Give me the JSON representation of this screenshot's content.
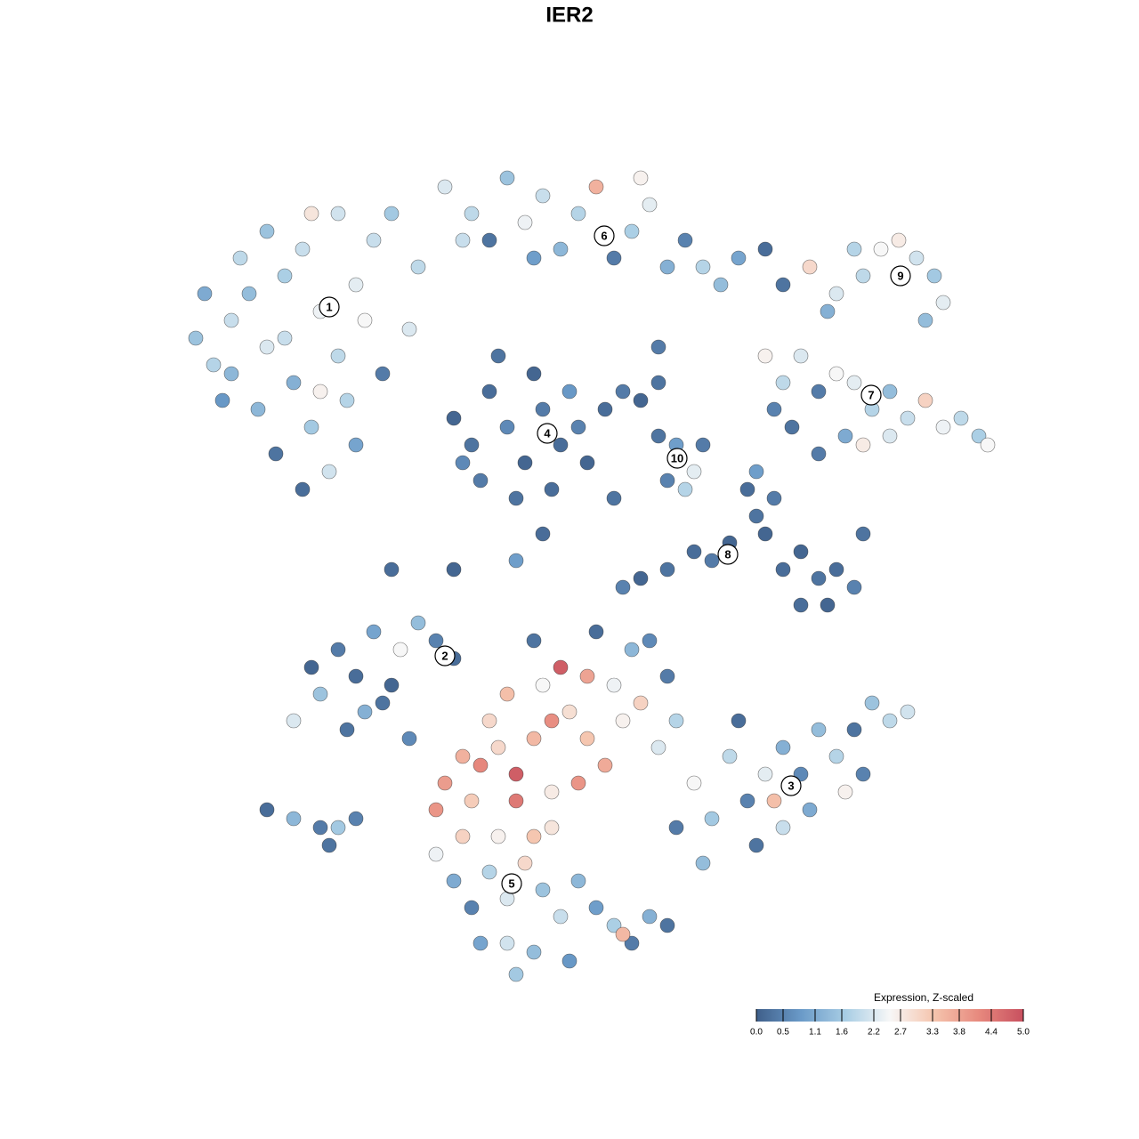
{
  "chart_data": {
    "type": "scatter",
    "title": "IER2",
    "xlim": [
      0,
      128
    ],
    "ylim": [
      0,
      128
    ],
    "x": [
      22,
      24,
      26,
      28,
      30,
      32,
      34,
      36,
      38,
      40,
      42,
      44,
      33,
      35,
      31,
      34,
      37,
      40,
      29,
      36,
      39,
      27,
      30,
      38,
      41,
      23,
      25,
      43,
      46,
      47,
      35,
      32,
      26,
      50,
      53,
      55,
      57,
      59,
      61,
      63,
      65,
      67,
      69,
      71,
      73,
      75,
      77,
      79,
      81,
      83,
      60,
      52,
      72,
      88,
      91,
      94,
      97,
      99,
      101,
      103,
      105,
      106,
      104,
      96,
      93,
      86,
      88,
      90,
      92,
      94,
      96,
      98,
      100,
      102,
      104,
      106,
      108,
      110,
      111,
      97,
      100,
      89,
      92,
      95,
      87,
      51,
      53,
      55,
      57,
      59,
      61,
      63,
      65,
      60,
      58,
      62,
      54,
      66,
      56,
      64,
      52,
      68,
      70,
      72,
      74,
      74,
      76,
      78,
      77,
      75,
      79,
      72,
      75,
      78,
      80,
      82,
      84,
      85,
      86,
      88,
      90,
      92,
      94,
      96,
      93,
      90,
      87,
      85,
      97,
      70,
      35,
      36,
      38,
      40,
      42,
      43,
      45,
      47,
      49,
      51,
      39,
      41,
      33,
      44,
      46,
      30,
      33,
      36,
      38,
      40,
      37,
      78,
      80,
      82,
      84,
      86,
      88,
      90,
      92,
      94,
      96,
      98,
      100,
      102,
      91,
      88,
      85,
      79,
      76,
      83,
      97,
      87,
      95,
      50,
      52,
      54,
      56,
      58,
      60,
      62,
      64,
      66,
      68,
      70,
      72,
      74,
      76,
      57,
      61,
      63,
      66,
      69,
      71,
      73,
      60,
      67,
      55,
      53,
      58,
      65,
      62,
      49,
      75,
      49,
      51,
      53,
      55,
      57,
      59,
      61,
      63,
      65,
      67,
      69,
      71,
      73,
      75,
      60,
      57,
      54,
      64,
      52,
      56,
      60,
      58,
      70,
      62,
      44,
      51,
      58,
      61,
      69,
      86,
      74
    ],
    "y": [
      90,
      87,
      92,
      95,
      89,
      97,
      100,
      93,
      88,
      96,
      101,
      104,
      85,
      80,
      77,
      73,
      75,
      78,
      82,
      84,
      83,
      99,
      102,
      104,
      92,
      95,
      83,
      86,
      91,
      98,
      104,
      90,
      86,
      107,
      104,
      101,
      108,
      103,
      106,
      100,
      104,
      107,
      99,
      102,
      105,
      98,
      101,
      98,
      96,
      99,
      99,
      101,
      108,
      96,
      98,
      95,
      97,
      100,
      101,
      99,
      97,
      94,
      92,
      100,
      93,
      88,
      85,
      88,
      84,
      86,
      85,
      82,
      84,
      81,
      83,
      80,
      81,
      79,
      78,
      78,
      79,
      80,
      77,
      79,
      82,
      81,
      78,
      84,
      80,
      76,
      82,
      78,
      80,
      86,
      72,
      73,
      74,
      76,
      88,
      84,
      76,
      82,
      84,
      83,
      85,
      79,
      78,
      75,
      73,
      74,
      78,
      63,
      64,
      66,
      65,
      67,
      73,
      70,
      68,
      64,
      66,
      63,
      64,
      62,
      60,
      60,
      72,
      75,
      68,
      62,
      53,
      50,
      55,
      52,
      57,
      49,
      55,
      58,
      56,
      54,
      46,
      48,
      47,
      51,
      45,
      37,
      36,
      35,
      35,
      36,
      33,
      40,
      36,
      43,
      38,
      41,
      44,
      41,
      46,
      43,
      46,
      49,
      47,
      48,
      37,
      35,
      33,
      31,
      35,
      47,
      41,
      38,
      39,
      40,
      43,
      42,
      44,
      41,
      45,
      47,
      48,
      45,
      42,
      47,
      49,
      44,
      47,
      50,
      51,
      53,
      52,
      51,
      55,
      56,
      56,
      57,
      47,
      38,
      38,
      40,
      39,
      37,
      52,
      32,
      29,
      26,
      30,
      27,
      31,
      28,
      25,
      29,
      26,
      24,
      22,
      25,
      24,
      21,
      22,
      22,
      20,
      34,
      34,
      34,
      18.5,
      23,
      35,
      64,
      64,
      65,
      68,
      72,
      100,
      89
    ],
    "values": [
      1.5,
      1.8,
      2.0,
      1.4,
      2.2,
      1.7,
      2.0,
      2.4,
      1.9,
      2.3,
      2.0,
      1.6,
      1.2,
      1.6,
      0.3,
      0.2,
      2.1,
      1.0,
      1.3,
      2.6,
      1.8,
      1.9,
      1.5,
      2.1,
      2.5,
      1.1,
      0.8,
      0.4,
      2.2,
      1.9,
      2.8,
      2.0,
      1.3,
      2.2,
      1.9,
      0.3,
      1.5,
      2.4,
      2.0,
      1.3,
      1.8,
      3.6,
      0.4,
      1.7,
      2.3,
      1.2,
      0.5,
      1.8,
      1.4,
      1.0,
      0.9,
      2.0,
      2.6,
      0.3,
      3.0,
      2.2,
      1.9,
      2.5,
      2.7,
      2.1,
      1.6,
      2.3,
      1.4,
      1.8,
      1.2,
      2.6,
      1.9,
      2.2,
      0.4,
      2.5,
      2.3,
      1.8,
      1.4,
      2.0,
      3.1,
      2.4,
      1.9,
      1.7,
      2.5,
      2.7,
      2.2,
      0.3,
      0.4,
      1.1,
      0.5,
      0.1,
      0.3,
      0.2,
      0.6,
      0.1,
      0.4,
      0.2,
      0.5,
      0.1,
      0.3,
      0.2,
      0.4,
      0.1,
      0.3,
      0.8,
      0.6,
      0.2,
      0.4,
      0.1,
      0.3,
      0.3,
      0.9,
      2.3,
      1.8,
      0.5,
      0.4,
      0.1,
      0.3,
      0.2,
      0.4,
      0.1,
      0.2,
      0.3,
      0.1,
      0.2,
      0.1,
      0.3,
      0.2,
      0.5,
      0.1,
      0.2,
      0.4,
      0.9,
      0.3,
      0.5,
      0.1,
      1.5,
      0.4,
      0.2,
      1.0,
      0.3,
      2.5,
      1.4,
      0.5,
      0.2,
      0.3,
      1.2,
      2.2,
      0.1,
      0.6,
      0.2,
      1.3,
      0.4,
      1.6,
      0.5,
      0.3,
      2.5,
      1.6,
      1.9,
      0.5,
      2.3,
      1.2,
      0.6,
      1.4,
      1.8,
      0.3,
      1.5,
      1.9,
      2.1,
      1.1,
      2.0,
      0.3,
      1.4,
      0.4,
      0.2,
      0.5,
      3.4,
      2.6,
      3.9,
      3.6,
      4.2,
      3.0,
      4.8,
      3.5,
      4.1,
      2.9,
      3.3,
      3.7,
      2.6,
      3.1,
      2.2,
      1.8,
      3.4,
      2.5,
      4.8,
      3.8,
      2.4,
      1.3,
      0.6,
      0.3,
      0.2,
      3.0,
      3.2,
      4.4,
      4.0,
      2.7,
      4.0,
      0.4,
      2.4,
      1.1,
      0.5,
      1.8,
      2.2,
      3.0,
      1.5,
      2.0,
      1.3,
      0.9,
      1.7,
      0.4,
      1.2,
      0.3,
      1.4,
      2.1,
      1.0,
      0.8,
      3.1,
      2.6,
      3.3,
      1.6,
      3.5,
      2.8,
      0.2,
      0.1,
      0.9,
      0.2,
      0.3,
      0.2,
      0.4
    ],
    "annotations": [
      {
        "text": "1",
        "x": 37,
        "y": 93.5
      },
      {
        "text": "2",
        "x": 50,
        "y": 54.3
      },
      {
        "text": "3",
        "x": 88.9,
        "y": 39.7
      },
      {
        "text": "4",
        "x": 61.5,
        "y": 79.3
      },
      {
        "text": "5",
        "x": 57.5,
        "y": 28.7
      },
      {
        "text": "6",
        "x": 67.9,
        "y": 101.5
      },
      {
        "text": "7",
        "x": 97.9,
        "y": 83.6
      },
      {
        "text": "8",
        "x": 81.8,
        "y": 65.7
      },
      {
        "text": "9",
        "x": 101.2,
        "y": 97
      },
      {
        "text": "10",
        "x": 76.1,
        "y": 76.5
      }
    ],
    "colorbar": {
      "title": "Expression, Z-scaled",
      "clim": [
        0,
        5
      ],
      "colors": [
        "#3f5f8a",
        "#6a9ac8",
        "#a8cde4",
        "#f7f7f7",
        "#f5c4ad",
        "#e7897e",
        "#c8505f"
      ],
      "ticks": [
        {
          "value": 0,
          "label": "0.0"
        },
        0.5,
        1.1,
        1.6,
        2.2,
        2.7,
        3.3,
        3.8,
        4.4,
        {
          "value": 5,
          "label": "5.0"
        }
      ]
    }
  }
}
